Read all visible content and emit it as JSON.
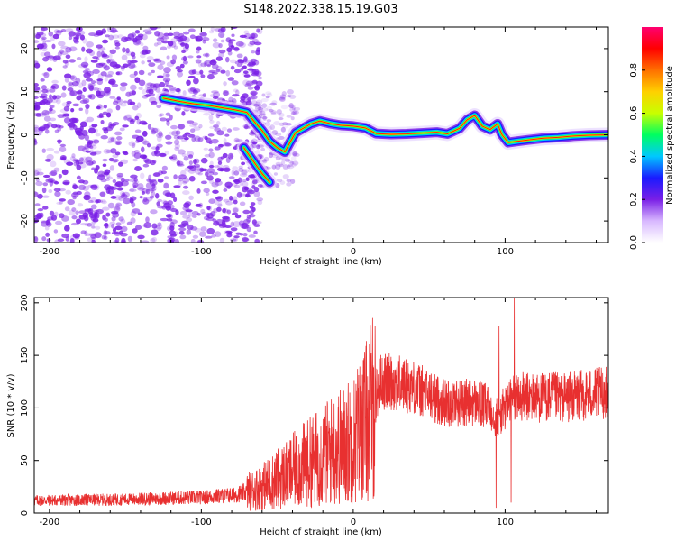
{
  "title": "S148.2022.338.15.19.G03",
  "colors": {
    "snr_line": "#e83030",
    "scatter_purple": "#7a1fe6",
    "axis": "#000000",
    "background": "#ffffff"
  },
  "chart_data": [
    {
      "type": "heatmap",
      "title": "S148.2022.338.15.19.G03",
      "xlabel": "Height of straight line (km)",
      "ylabel": "Frequency (Hz)",
      "xlim": [
        -210,
        168
      ],
      "ylim": [
        -25,
        25
      ],
      "x_ticks": [
        -200,
        -100,
        0,
        100
      ],
      "y_ticks": [
        -20,
        -10,
        0,
        10,
        20
      ],
      "colorbar": {
        "label": "Normalized spectral amplitude",
        "range": [
          0.0,
          1.0
        ],
        "ticks": [
          "0.0",
          "0.2",
          "0.4",
          "0.6",
          "0.8"
        ],
        "colormap": [
          "#ffffff",
          "#d8b8ff",
          "#7a1fe6",
          "#1a1aff",
          "#00c8ff",
          "#00ff60",
          "#c8ff00",
          "#ffd000",
          "#ff7000",
          "#ff0000",
          "#ff0070"
        ]
      },
      "noise_region": {
        "x_range": [
          -210,
          -67
        ],
        "note_visible": false
      },
      "ridge": {
        "x": [
          -125,
          -115,
          -105,
          -95,
          -85,
          -78,
          -70,
          -65,
          -60,
          -55,
          -50,
          -45,
          -42,
          -38,
          -33,
          -28,
          -22,
          -15,
          -8,
          0,
          8,
          15,
          25,
          35,
          45,
          55,
          62,
          70,
          75,
          80,
          85,
          90,
          95,
          98,
          102,
          108,
          115,
          125,
          135,
          145,
          155,
          168
        ],
        "y": [
          8.5,
          7.8,
          7.2,
          6.8,
          6.2,
          5.8,
          5.2,
          3,
          1,
          -1.5,
          -3,
          -4,
          -2,
          0.5,
          1.5,
          2.5,
          3.2,
          2.6,
          2.2,
          2,
          1.6,
          0.3,
          0.1,
          0.2,
          0.4,
          0.6,
          0.2,
          1.5,
          3.5,
          4.5,
          2,
          1.2,
          2.5,
          0,
          -1.8,
          -1.5,
          -1.2,
          -0.8,
          -0.6,
          -0.3,
          -0.1,
          0
        ]
      },
      "branch": {
        "x": [
          -72,
          -66,
          -60,
          -55
        ],
        "y": [
          -3,
          -6,
          -9,
          -11
        ]
      }
    },
    {
      "type": "line",
      "xlabel": "Height of straight line (km)",
      "ylabel": "SNR (10 * v/v)",
      "xlim": [
        -210,
        168
      ],
      "ylim": [
        0,
        205
      ],
      "x_ticks": [
        -200,
        -100,
        0,
        100
      ],
      "y_ticks": [
        0,
        50,
        100,
        150,
        200
      ],
      "trend_x": [
        -210,
        -150,
        -100,
        -80,
        -70,
        -60,
        -40,
        -20,
        0,
        10,
        18,
        25,
        40,
        50,
        60,
        80,
        90,
        95,
        105,
        120,
        140,
        168
      ],
      "trend_y": [
        12,
        13,
        15,
        17,
        20,
        25,
        40,
        55,
        70,
        90,
        125,
        125,
        120,
        112,
        105,
        105,
        100,
        90,
        110,
        110,
        110,
        115
      ],
      "spikes": [
        {
          "x": 94,
          "y": 5
        },
        {
          "x": 96,
          "y": 178
        },
        {
          "x": 104,
          "y": 10
        },
        {
          "x": 106,
          "y": 205
        }
      ]
    }
  ]
}
